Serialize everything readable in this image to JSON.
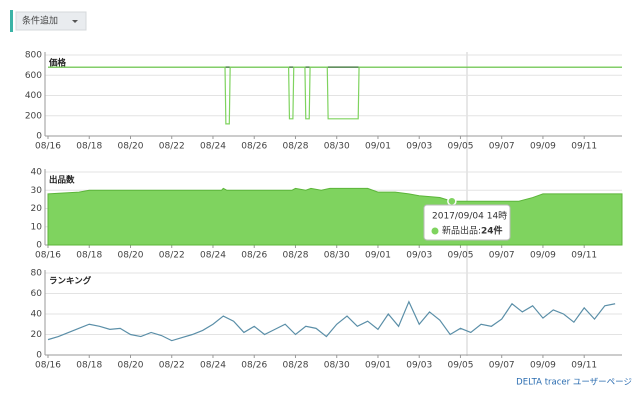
{
  "toolbar": {
    "button": "条件追加"
  },
  "chart_data": [
    {
      "type": "line",
      "title": "価格",
      "x": [
        "2017-08-16T00:00",
        "2017-08-24T14:00",
        "2017-08-24T15:00",
        "2017-08-24T19:00",
        "2017-08-24T20:00",
        "2017-08-27T16:00",
        "2017-08-27T17:00",
        "2017-08-27T21:00",
        "2017-08-27T22:00",
        "2017-08-28T11:00",
        "2017-08-28T12:00",
        "2017-08-28T16:00",
        "2017-08-28T17:00",
        "2017-08-29T13:00",
        "2017-08-29T14:00",
        "2017-08-31T01:00",
        "2017-08-31T02:00",
        "2017-09-12T20:00"
      ],
      "series": [
        {
          "color": "#2f6b2a",
          "values": [
            680,
            680,
            680,
            680,
            680,
            680,
            680,
            680,
            680,
            680,
            680,
            680,
            680,
            680,
            680,
            680,
            680,
            680
          ]
        },
        {
          "color": "#7fd35f",
          "values": [
            680,
            680,
            120,
            120,
            680,
            680,
            170,
            170,
            680,
            680,
            170,
            170,
            680,
            680,
            170,
            170,
            680,
            680
          ]
        }
      ],
      "xlim": [
        "2017-08-16T00:00",
        "2017-09-12T20:00"
      ],
      "ylim": [
        0,
        800
      ],
      "yticks": [
        0,
        200,
        400,
        600,
        800
      ],
      "xticks": [
        {
          "value": "2017-08-16T00:00",
          "label": "08/16"
        },
        {
          "value": "2017-08-18T00:00",
          "label": "08/18"
        },
        {
          "value": "2017-08-20T00:00",
          "label": "08/20"
        },
        {
          "value": "2017-08-22T00:00",
          "label": "08/22"
        },
        {
          "value": "2017-08-24T00:00",
          "label": "08/24"
        },
        {
          "value": "2017-08-26T00:00",
          "label": "08/26"
        },
        {
          "value": "2017-08-28T00:00",
          "label": "08/28"
        },
        {
          "value": "2017-08-30T00:00",
          "label": "08/30"
        },
        {
          "value": "2017-09-01T00:00",
          "label": "09/01"
        },
        {
          "value": "2017-09-03T00:00",
          "label": "09/03"
        },
        {
          "value": "2017-09-05T00:00",
          "label": "09/05"
        },
        {
          "value": "2017-09-07T00:00",
          "label": "09/07"
        },
        {
          "value": "2017-09-09T00:00",
          "label": "09/09"
        },
        {
          "value": "2017-09-11T00:00",
          "label": "09/11"
        }
      ]
    },
    {
      "type": "area",
      "title": "出品数",
      "x": [
        "2017-08-16T00:00",
        "2017-08-17T12:00",
        "2017-08-18T00:00",
        "2017-08-24T10:00",
        "2017-08-24T12:00",
        "2017-08-24T16:00",
        "2017-08-27T20:00",
        "2017-08-28T00:00",
        "2017-08-28T12:00",
        "2017-08-28T18:00",
        "2017-08-29T06:00",
        "2017-08-29T16:00",
        "2017-08-31T12:00",
        "2017-09-01T00:00",
        "2017-09-01T20:00",
        "2017-09-02T12:00",
        "2017-09-03T00:00",
        "2017-09-04T00:00",
        "2017-09-04T14:00",
        "2017-09-05T00:00",
        "2017-09-07T20:00",
        "2017-09-08T12:00",
        "2017-09-09T00:00",
        "2017-09-12T20:00"
      ],
      "series": [
        {
          "name": "新品出品",
          "color": "#7fd35f",
          "values": [
            28,
            29,
            30,
            30,
            31,
            30,
            30,
            31,
            30,
            31,
            30,
            31,
            31,
            29,
            29,
            28,
            27,
            26,
            24,
            24,
            24,
            26,
            28,
            28
          ]
        }
      ],
      "xlim": [
        "2017-08-16T00:00",
        "2017-09-12T20:00"
      ],
      "ylim": [
        0,
        40
      ],
      "yticks": [
        0,
        10,
        20,
        30,
        40
      ],
      "xticks": [
        {
          "value": "2017-08-16T00:00",
          "label": "08/16"
        },
        {
          "value": "2017-08-18T00:00",
          "label": "08/18"
        },
        {
          "value": "2017-08-20T00:00",
          "label": "08/20"
        },
        {
          "value": "2017-08-22T00:00",
          "label": "08/22"
        },
        {
          "value": "2017-08-24T00:00",
          "label": "08/24"
        },
        {
          "value": "2017-08-26T00:00",
          "label": "08/26"
        },
        {
          "value": "2017-08-28T00:00",
          "label": "08/28"
        },
        {
          "value": "2017-08-30T00:00",
          "label": "08/30"
        },
        {
          "value": "2017-09-01T00:00",
          "label": "09/01"
        },
        {
          "value": "2017-09-03T00:00",
          "label": "09/03"
        },
        {
          "value": "2017-09-05T00:00",
          "label": "09/05"
        },
        {
          "value": "2017-09-07T00:00",
          "label": "09/07"
        },
        {
          "value": "2017-09-09T00:00",
          "label": "09/09"
        },
        {
          "value": "2017-09-11T00:00",
          "label": "09/11"
        }
      ]
    },
    {
      "type": "line",
      "title": "ランキング",
      "x": [
        "2017-08-16T00:00",
        "2017-08-16T12:00",
        "2017-08-17T00:00",
        "2017-08-17T12:00",
        "2017-08-18T00:00",
        "2017-08-18T12:00",
        "2017-08-19T00:00",
        "2017-08-19T12:00",
        "2017-08-20T00:00",
        "2017-08-20T12:00",
        "2017-08-21T00:00",
        "2017-08-21T12:00",
        "2017-08-22T00:00",
        "2017-08-22T12:00",
        "2017-08-23T00:00",
        "2017-08-23T12:00",
        "2017-08-24T00:00",
        "2017-08-24T12:00",
        "2017-08-25T00:00",
        "2017-08-25T12:00",
        "2017-08-26T00:00",
        "2017-08-26T12:00",
        "2017-08-27T00:00",
        "2017-08-27T12:00",
        "2017-08-28T00:00",
        "2017-08-28T12:00",
        "2017-08-29T00:00",
        "2017-08-29T12:00",
        "2017-08-30T00:00",
        "2017-08-30T12:00",
        "2017-08-31T00:00",
        "2017-08-31T12:00",
        "2017-09-01T00:00",
        "2017-09-01T12:00",
        "2017-09-02T00:00",
        "2017-09-02T12:00",
        "2017-09-03T00:00",
        "2017-09-03T12:00",
        "2017-09-04T00:00",
        "2017-09-04T12:00",
        "2017-09-05T00:00",
        "2017-09-05T12:00",
        "2017-09-06T00:00",
        "2017-09-06T12:00",
        "2017-09-07T00:00",
        "2017-09-07T12:00",
        "2017-09-08T00:00",
        "2017-09-08T12:00",
        "2017-09-09T00:00",
        "2017-09-09T12:00",
        "2017-09-10T00:00",
        "2017-09-10T12:00",
        "2017-09-11T00:00",
        "2017-09-11T12:00",
        "2017-09-12T00:00",
        "2017-09-12T12:00"
      ],
      "series": [
        {
          "color": "#5b8fa8",
          "values": [
            15,
            18,
            22,
            26,
            30,
            28,
            25,
            26,
            20,
            18,
            22,
            19,
            14,
            17,
            20,
            24,
            30,
            38,
            33,
            22,
            28,
            20,
            25,
            30,
            20,
            28,
            26,
            18,
            30,
            38,
            28,
            33,
            25,
            40,
            28,
            52,
            30,
            42,
            34,
            20,
            26,
            22,
            30,
            28,
            35,
            50,
            42,
            48,
            36,
            44,
            40,
            32,
            46,
            35,
            48,
            50
          ]
        }
      ],
      "xlim": [
        "2017-08-16T00:00",
        "2017-09-12T20:00"
      ],
      "ylim": [
        0,
        80
      ],
      "yticks": [
        0,
        20,
        40,
        60,
        80
      ],
      "xticks": [
        {
          "value": "2017-08-16T00:00",
          "label": "08/16"
        },
        {
          "value": "2017-08-18T00:00",
          "label": "08/18"
        },
        {
          "value": "2017-08-20T00:00",
          "label": "08/20"
        },
        {
          "value": "2017-08-22T00:00",
          "label": "08/22"
        },
        {
          "value": "2017-08-24T00:00",
          "label": "08/24"
        },
        {
          "value": "2017-08-26T00:00",
          "label": "08/26"
        },
        {
          "value": "2017-08-28T00:00",
          "label": "08/28"
        },
        {
          "value": "2017-08-30T00:00",
          "label": "08/30"
        },
        {
          "value": "2017-09-01T00:00",
          "label": "09/01"
        },
        {
          "value": "2017-09-03T00:00",
          "label": "09/03"
        },
        {
          "value": "2017-09-05T00:00",
          "label": "09/05"
        },
        {
          "value": "2017-09-07T00:00",
          "label": "09/07"
        },
        {
          "value": "2017-09-09T00:00",
          "label": "09/09"
        },
        {
          "value": "2017-09-11T00:00",
          "label": "09/11"
        }
      ]
    }
  ],
  "tooltip": {
    "title": "2017/09/04 14時",
    "label": "新品出品:",
    "value": "24件"
  },
  "footer": {
    "link": "DELTA tracer ユーザーページ"
  }
}
